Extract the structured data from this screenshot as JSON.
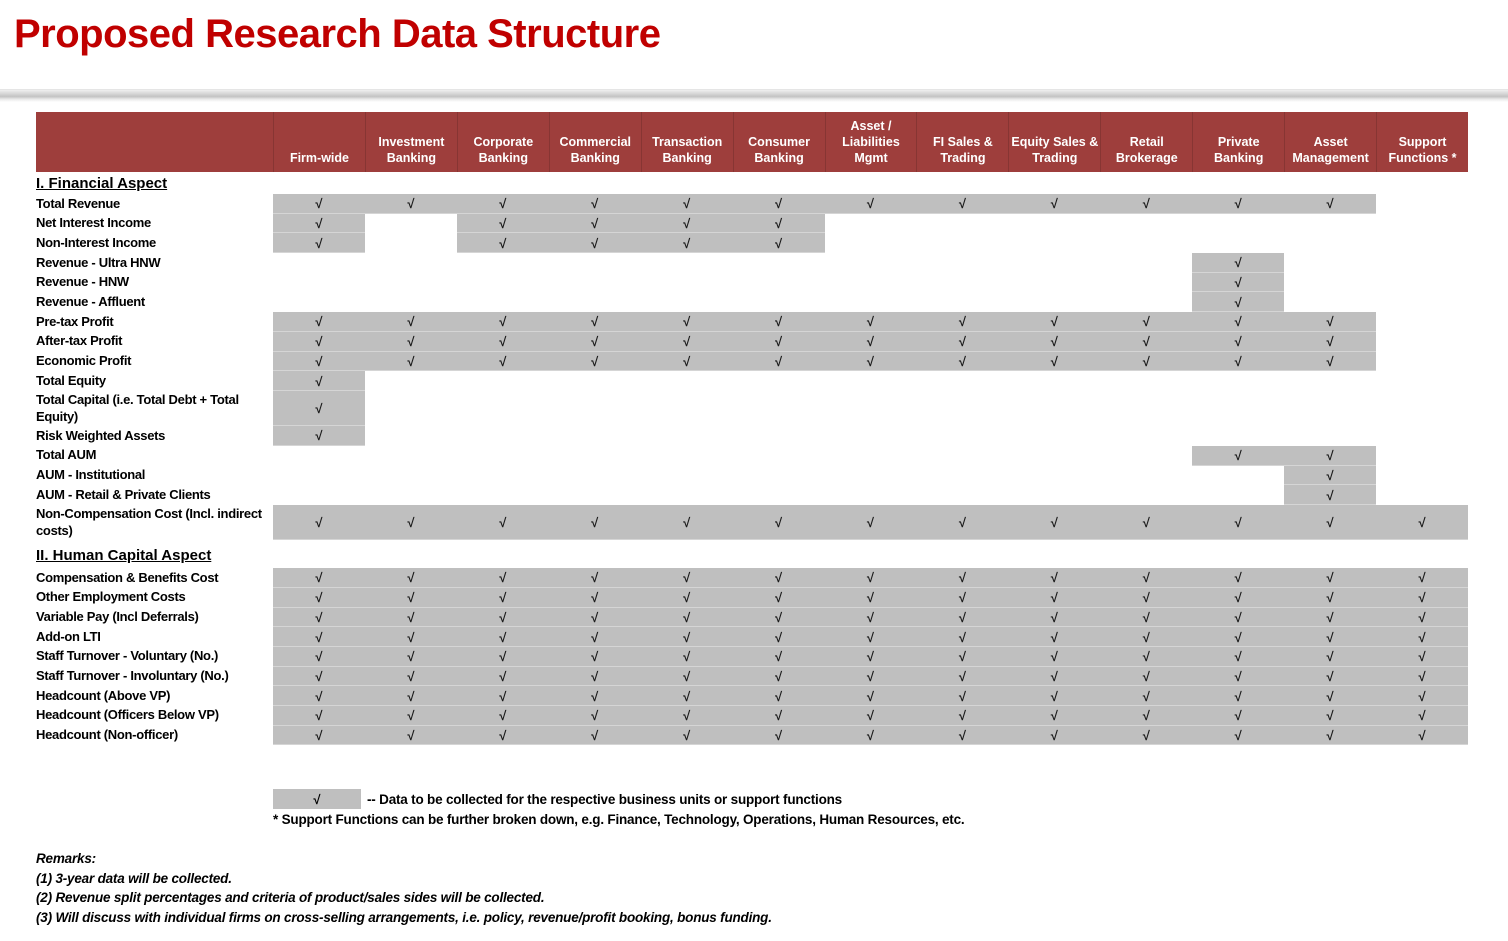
{
  "title": "Proposed Research Data Structure",
  "colors": {
    "title_red": "#C00000",
    "header_maroon": "#9E3E3C",
    "cell_gray": "#BFBFBF"
  },
  "table": {
    "check_glyph": "√",
    "columns": [
      "Firm-wide",
      "Investment Banking",
      "Corporate Banking",
      "Commercial Banking",
      "Transaction Banking",
      "Consumer Banking",
      "Asset / Liabilities Mgmt",
      "FI Sales & Trading",
      "Equity Sales & Trading",
      "Retail Brokerage",
      "Private Banking",
      "Asset Management",
      "Support Functions *"
    ],
    "sections": [
      {
        "heading": "I. Financial Aspect",
        "rows": [
          {
            "label": "Total Revenue",
            "checks": [
              1,
              1,
              1,
              1,
              1,
              1,
              1,
              1,
              1,
              1,
              1,
              1,
              0
            ]
          },
          {
            "label": "Net Interest Income",
            "checks": [
              1,
              0,
              1,
              1,
              1,
              1,
              0,
              0,
              0,
              0,
              0,
              0,
              0
            ]
          },
          {
            "label": "Non-Interest Income",
            "checks": [
              1,
              0,
              1,
              1,
              1,
              1,
              0,
              0,
              0,
              0,
              0,
              0,
              0
            ]
          },
          {
            "label": "Revenue - Ultra HNW",
            "checks": [
              0,
              0,
              0,
              0,
              0,
              0,
              0,
              0,
              0,
              0,
              1,
              0,
              0
            ]
          },
          {
            "label": "Revenue - HNW",
            "checks": [
              0,
              0,
              0,
              0,
              0,
              0,
              0,
              0,
              0,
              0,
              1,
              0,
              0
            ]
          },
          {
            "label": "Revenue - Affluent",
            "checks": [
              0,
              0,
              0,
              0,
              0,
              0,
              0,
              0,
              0,
              0,
              1,
              0,
              0
            ]
          },
          {
            "label": "Pre-tax Profit",
            "checks": [
              1,
              1,
              1,
              1,
              1,
              1,
              1,
              1,
              1,
              1,
              1,
              1,
              0
            ]
          },
          {
            "label": "After-tax Profit",
            "checks": [
              1,
              1,
              1,
              1,
              1,
              1,
              1,
              1,
              1,
              1,
              1,
              1,
              0
            ]
          },
          {
            "label": "Economic Profit",
            "checks": [
              1,
              1,
              1,
              1,
              1,
              1,
              1,
              1,
              1,
              1,
              1,
              1,
              0
            ]
          },
          {
            "label": "Total Equity",
            "checks": [
              1,
              0,
              0,
              0,
              0,
              0,
              0,
              0,
              0,
              0,
              0,
              0,
              0
            ]
          },
          {
            "label": "Total Capital (i.e. Total Debt + Total Equity)",
            "checks": [
              1,
              0,
              0,
              0,
              0,
              0,
              0,
              0,
              0,
              0,
              0,
              0,
              0
            ]
          },
          {
            "label": "Risk Weighted Assets",
            "checks": [
              1,
              0,
              0,
              0,
              0,
              0,
              0,
              0,
              0,
              0,
              0,
              0,
              0
            ]
          },
          {
            "label": "Total AUM",
            "checks": [
              0,
              0,
              0,
              0,
              0,
              0,
              0,
              0,
              0,
              0,
              1,
              1,
              0
            ]
          },
          {
            "label": "AUM - Institutional",
            "checks": [
              0,
              0,
              0,
              0,
              0,
              0,
              0,
              0,
              0,
              0,
              0,
              1,
              0
            ]
          },
          {
            "label": "AUM - Retail & Private Clients",
            "checks": [
              0,
              0,
              0,
              0,
              0,
              0,
              0,
              0,
              0,
              0,
              0,
              1,
              0
            ]
          },
          {
            "label": "Non-Compensation Cost (Incl. indirect costs)",
            "checks": [
              1,
              1,
              1,
              1,
              1,
              1,
              1,
              1,
              1,
              1,
              1,
              1,
              1
            ]
          }
        ]
      },
      {
        "heading": "II. Human Capital Aspect",
        "rows": [
          {
            "label": "Compensation & Benefits Cost",
            "checks": [
              1,
              1,
              1,
              1,
              1,
              1,
              1,
              1,
              1,
              1,
              1,
              1,
              1
            ]
          },
          {
            "label": "Other Employment Costs",
            "checks": [
              1,
              1,
              1,
              1,
              1,
              1,
              1,
              1,
              1,
              1,
              1,
              1,
              1
            ]
          },
          {
            "label": "Variable Pay (Incl Deferrals)",
            "checks": [
              1,
              1,
              1,
              1,
              1,
              1,
              1,
              1,
              1,
              1,
              1,
              1,
              1
            ]
          },
          {
            "label": "Add-on LTI",
            "checks": [
              1,
              1,
              1,
              1,
              1,
              1,
              1,
              1,
              1,
              1,
              1,
              1,
              1
            ]
          },
          {
            "label": "Staff Turnover - Voluntary (No.)",
            "checks": [
              1,
              1,
              1,
              1,
              1,
              1,
              1,
              1,
              1,
              1,
              1,
              1,
              1
            ]
          },
          {
            "label": "Staff Turnover - Involuntary (No.)",
            "checks": [
              1,
              1,
              1,
              1,
              1,
              1,
              1,
              1,
              1,
              1,
              1,
              1,
              1
            ]
          },
          {
            "label": "Headcount (Above VP)",
            "checks": [
              1,
              1,
              1,
              1,
              1,
              1,
              1,
              1,
              1,
              1,
              1,
              1,
              1
            ]
          },
          {
            "label": "Headcount (Officers Below VP)",
            "checks": [
              1,
              1,
              1,
              1,
              1,
              1,
              1,
              1,
              1,
              1,
              1,
              1,
              1
            ]
          },
          {
            "label": "Headcount (Non-officer)",
            "checks": [
              1,
              1,
              1,
              1,
              1,
              1,
              1,
              1,
              1,
              1,
              1,
              1,
              1
            ]
          }
        ]
      }
    ]
  },
  "legend": {
    "symbol": "√",
    "text": "-- Data to be collected for the respective business units or support functions",
    "footnote": "* Support Functions can be further broken down, e.g. Finance, Technology, Operations, Human Resources, etc."
  },
  "remarks": {
    "heading": "Remarks:",
    "lines": [
      "(1) 3-year data will be collected.",
      "(2) Revenue split percentages and criteria of product/sales sides will be collected.",
      "(3) Will discuss with individual firms on cross-selling arrangements, i.e. policy, revenue/profit booking, bonus funding."
    ]
  }
}
